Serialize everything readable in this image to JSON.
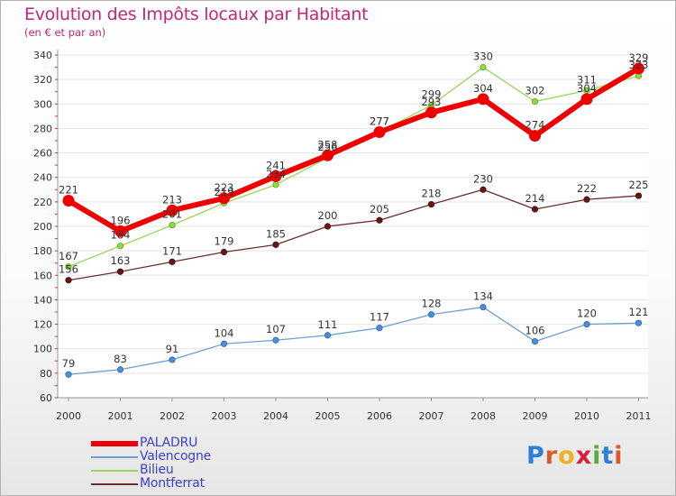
{
  "chart_data": {
    "type": "line",
    "title": "Evolution des Impôts locaux par Habitant",
    "subtitle": "(en € et par an)",
    "xlabel": "",
    "ylabel": "",
    "ylim": [
      60,
      340
    ],
    "yticks": [
      60,
      80,
      100,
      120,
      140,
      160,
      180,
      200,
      220,
      240,
      260,
      280,
      300,
      320,
      340
    ],
    "categories": [
      "2000",
      "2001",
      "2002",
      "2003",
      "2004",
      "2005",
      "2006",
      "2007",
      "2008",
      "2009",
      "2010",
      "2011"
    ],
    "series": [
      {
        "name": "PALADRU",
        "color": "#ee0000",
        "values": [
          221,
          196,
          213,
          223,
          241,
          258,
          277,
          293,
          304,
          274,
          304,
          329
        ]
      },
      {
        "name": "Valencogne",
        "color": "#6e9fd0",
        "values": [
          79,
          83,
          91,
          104,
          107,
          111,
          117,
          128,
          134,
          106,
          120,
          121
        ]
      },
      {
        "name": "Bilieu",
        "color": "#9ad65a",
        "values": [
          167,
          184,
          201,
          219,
          234,
          256,
          277,
          299,
          330,
          302,
          311,
          323
        ]
      },
      {
        "name": "Montferrat",
        "color": "#6a2e2e",
        "values": [
          156,
          163,
          171,
          179,
          185,
          200,
          205,
          218,
          230,
          214,
          222,
          225
        ]
      }
    ],
    "legend_position": "bottom-left"
  },
  "branding": {
    "logo_text": "Proxiti"
  }
}
